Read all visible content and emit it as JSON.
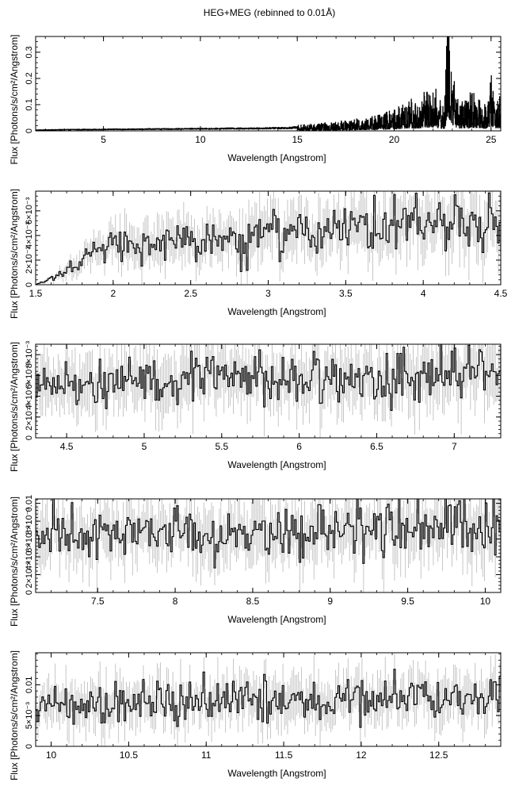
{
  "page_title": "HEG+MEG (rebinned to 0.01Å)",
  "colors": {
    "spectrum": "#000000",
    "error_bars": "#b8b8b8",
    "axes": "#000000"
  },
  "chart_data": [
    {
      "type": "line",
      "title": "HEG+MEG (rebinned to 0.01Å)",
      "xlabel": "Wavelength [Angstrom]",
      "ylabel": "Flux [Photons/s/cm²/Angstrom]",
      "xlim": [
        1.5,
        25.5
      ],
      "ylim": [
        0,
        0.36
      ],
      "xticks": [
        5,
        10,
        15,
        20,
        25
      ],
      "yticks": [
        0,
        0.1,
        0.2,
        0.3
      ],
      "yticklabels": [
        "0",
        "0.1",
        "0.2",
        "0.3"
      ],
      "grid": false,
      "series": [
        {
          "x": [
            1.5,
            2.5,
            3.5,
            4.5,
            5.5,
            6.5,
            7.5,
            8.5,
            9.5,
            10.5,
            11.5,
            12.5,
            13.5,
            14.5,
            15.0,
            15.5,
            16.0,
            16.5,
            17.0,
            17.5,
            18.0,
            18.5,
            19.0,
            19.5,
            20.0,
            20.5,
            21.0,
            21.2,
            21.6,
            22.0,
            22.1,
            22.3,
            22.6,
            22.8,
            22.9,
            23.1,
            23.3,
            23.5,
            23.8,
            24.0,
            24.2,
            24.4,
            24.6,
            24.8,
            25.0,
            25.3,
            25.5
          ],
          "y": [
            0.003,
            0.004,
            0.005,
            0.005,
            0.006,
            0.006,
            0.007,
            0.007,
            0.008,
            0.008,
            0.009,
            0.009,
            0.01,
            0.011,
            0.013,
            0.014,
            0.016,
            0.018,
            0.02,
            0.023,
            0.026,
            0.03,
            0.035,
            0.04,
            0.05,
            0.06,
            0.075,
            0.06,
            0.09,
            0.095,
            0.11,
            0.07,
            0.06,
            0.37,
            0.21,
            0.12,
            0.07,
            0.075,
            0.065,
            0.1,
            0.07,
            0.08,
            0.065,
            0.065,
            0.13,
            0.06,
            0.085
          ]
        }
      ]
    },
    {
      "type": "line",
      "xlabel": "Wavelength [Angstrom]",
      "ylabel": "Flux [Photons/s/cm²/Angstrom]",
      "xlim": [
        1.5,
        4.5
      ],
      "ylim": [
        0,
        0.0076
      ],
      "xticks": [
        1.5,
        2,
        2.5,
        3,
        3.5,
        4,
        4.5
      ],
      "yticks": [
        0,
        0.002,
        0.004,
        0.006
      ],
      "yticklabels": [
        "0",
        "2×10⁻³",
        "4×10⁻³",
        "6×10⁻³"
      ],
      "grid": false,
      "series": [
        {
          "x": [
            1.5,
            1.6,
            1.7,
            1.8,
            1.9,
            2.0,
            2.1,
            2.2,
            2.3,
            2.4,
            2.5,
            2.6,
            2.7,
            2.8,
            2.9,
            3.0,
            3.1,
            3.2,
            3.3,
            3.4,
            3.5,
            3.6,
            3.7,
            3.8,
            3.9,
            4.0,
            4.1,
            4.2,
            4.3,
            4.4,
            4.5
          ],
          "y": [
            0.0,
            0.0005,
            0.0012,
            0.0022,
            0.0028,
            0.0032,
            0.0033,
            0.0034,
            0.0036,
            0.0035,
            0.0036,
            0.0037,
            0.0037,
            0.0039,
            0.0041,
            0.0043,
            0.0042,
            0.0044,
            0.0044,
            0.0045,
            0.0045,
            0.0047,
            0.0047,
            0.0048,
            0.0049,
            0.0049,
            0.005,
            0.005,
            0.0051,
            0.0051,
            0.0052
          ]
        }
      ]
    },
    {
      "type": "line",
      "xlabel": "Wavelength [Angstrom]",
      "ylabel": "Flux [Photons/s/cm²/Angstrom]",
      "xlim": [
        4.3,
        7.3
      ],
      "ylim": [
        0,
        0.009
      ],
      "xticks": [
        4.5,
        5,
        5.5,
        6,
        6.5,
        7
      ],
      "yticks": [
        0,
        0.002,
        0.004,
        0.006,
        0.008
      ],
      "yticklabels": [
        "0",
        "2×10⁻³",
        "4×10⁻³",
        "6×10⁻³",
        "8×10⁻³"
      ],
      "grid": false,
      "series": [
        {
          "x": [
            4.3,
            4.5,
            4.7,
            4.9,
            5.1,
            5.3,
            5.5,
            5.7,
            5.9,
            6.1,
            6.3,
            6.5,
            6.7,
            6.9,
            7.1,
            7.3
          ],
          "y": [
            0.0052,
            0.0053,
            0.0054,
            0.0055,
            0.0055,
            0.0056,
            0.0056,
            0.0057,
            0.0057,
            0.0058,
            0.0058,
            0.0059,
            0.0059,
            0.006,
            0.0061,
            0.0061
          ]
        }
      ]
    },
    {
      "type": "line",
      "xlabel": "Wavelength [Angstrom]",
      "ylabel": "Flux [Photons/s/cm²/Angstrom]",
      "xlim": [
        7.1,
        10.1
      ],
      "ylim": [
        0,
        0.0105
      ],
      "xticks": [
        7.5,
        8,
        8.5,
        9,
        9.5,
        10
      ],
      "yticks": [
        0,
        0.002,
        0.004,
        0.006,
        0.008,
        0.01
      ],
      "yticklabels": [
        "0",
        "2×10⁻³",
        "4×10⁻³",
        "6×10⁻³",
        "8×10⁻³",
        "0.01"
      ],
      "grid": false,
      "series": [
        {
          "x": [
            7.1,
            7.3,
            7.5,
            7.7,
            7.9,
            8.1,
            8.3,
            8.5,
            8.7,
            8.9,
            9.1,
            9.3,
            9.5,
            9.7,
            9.9,
            10.1
          ],
          "y": [
            0.0062,
            0.0063,
            0.0064,
            0.0064,
            0.0065,
            0.0066,
            0.0066,
            0.0067,
            0.0068,
            0.0068,
            0.0069,
            0.0069,
            0.007,
            0.0071,
            0.0071,
            0.0072
          ]
        }
      ]
    },
    {
      "type": "line",
      "xlabel": "Wavelength [Angstrom]",
      "ylabel": "Flux [Photons/s/cm²/Angstrom]",
      "xlim": [
        9.9,
        12.9
      ],
      "ylim": [
        0,
        0.0152
      ],
      "xticks": [
        10,
        10.5,
        11,
        11.5,
        12,
        12.5
      ],
      "yticks": [
        0,
        0.005,
        0.01
      ],
      "yticklabels": [
        "0",
        "5×10⁻³",
        "0.01"
      ],
      "grid": false,
      "series": [
        {
          "x": [
            9.9,
            10.1,
            10.3,
            10.5,
            10.7,
            10.9,
            11.1,
            11.3,
            11.5,
            11.7,
            11.9,
            12.1,
            12.3,
            12.5,
            12.7,
            12.9
          ],
          "y": [
            0.007,
            0.0071,
            0.0072,
            0.0072,
            0.0073,
            0.0073,
            0.0074,
            0.0074,
            0.0075,
            0.0075,
            0.0076,
            0.0077,
            0.0077,
            0.0078,
            0.0078,
            0.0079
          ]
        }
      ]
    }
  ]
}
